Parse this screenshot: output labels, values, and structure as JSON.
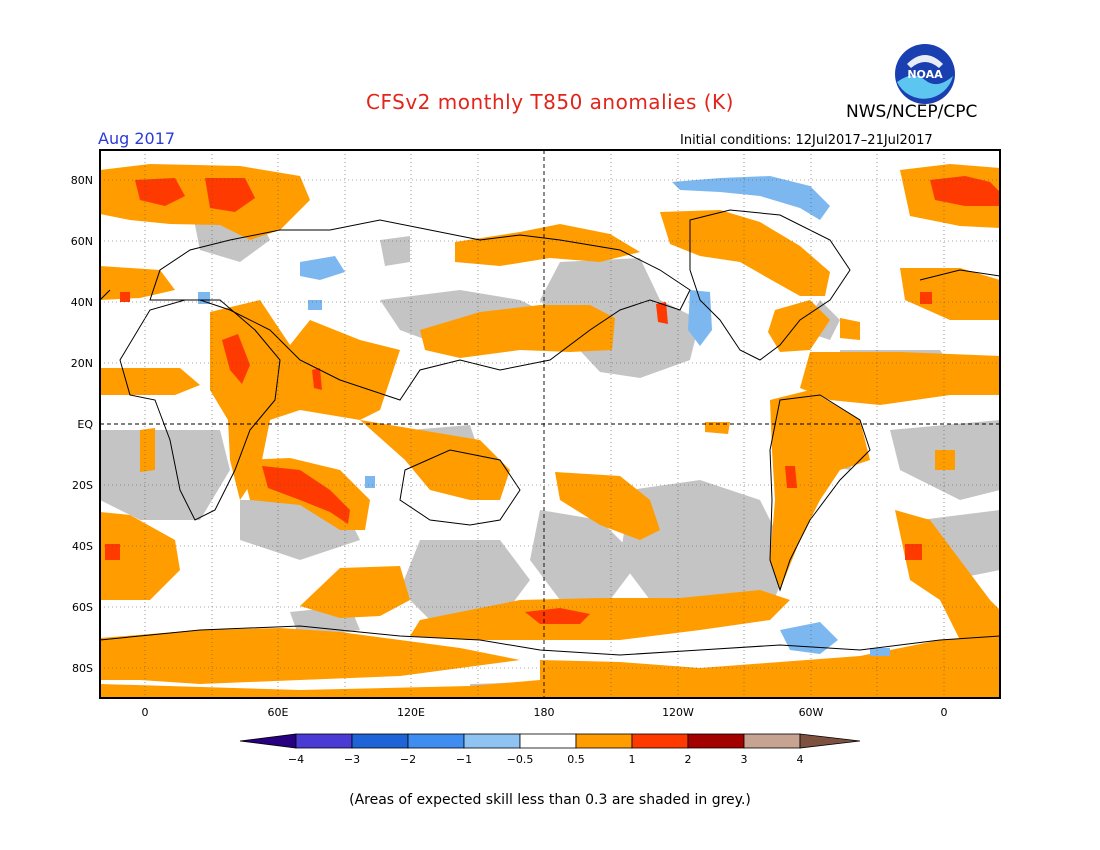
{
  "header": {
    "title": "CFSv2 monthly T850 anomalies (K)",
    "organization": "NWS/NCEP/CPC",
    "logo_text": "NOAA",
    "month": "Aug 2017",
    "initial_conditions": "Initial conditions: 12Jul2017–21Jul2017"
  },
  "map": {
    "lat_labels": [
      "80N",
      "60N",
      "40N",
      "20N",
      "EQ",
      "20S",
      "40S",
      "60S",
      "80S"
    ],
    "lon_labels": [
      "0",
      "60E",
      "120E",
      "180",
      "120W",
      "60W",
      "0"
    ]
  },
  "colorbar": {
    "tick_labels": [
      "−4",
      "−3",
      "−2",
      "−1",
      "−0.5",
      "0.5",
      "1",
      "2",
      "3",
      "4"
    ],
    "colors": [
      "#27007f",
      "#4a3bd4",
      "#1f64d6",
      "#3f8df0",
      "#8fc4f2",
      "#ffffff",
      "#ff9c00",
      "#ff3a00",
      "#a30000",
      "#c7a392",
      "#7d5040"
    ]
  },
  "footer": {
    "note": "(Areas of expected skill less than 0.3 are shaded in grey.)"
  },
  "colors": {
    "title": "#e3241b",
    "month": "#2a3bd8",
    "orange": "#ff9c00",
    "red": "#ff3a00",
    "blue": "#7cb8ef",
    "grey": "#c4c4c4"
  }
}
